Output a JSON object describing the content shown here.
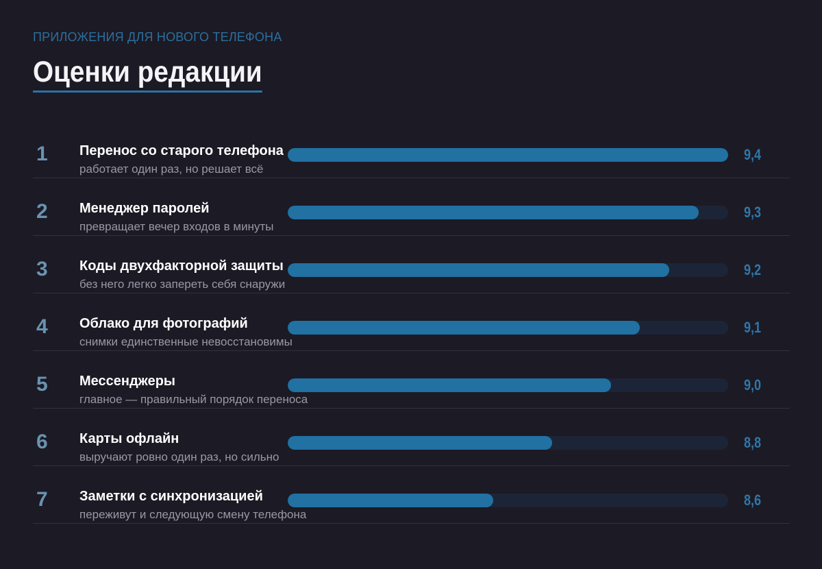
{
  "header": {
    "kicker": "ПРИЛОЖЕНИЯ ДЛЯ НОВОГО ТЕЛЕФОНА",
    "title": "Оценки редакции"
  },
  "colors": {
    "background": "#1c1a24",
    "accent": "#2171a3",
    "track": "#1c2537",
    "rank": "#6993b1",
    "score": "#2e77aa"
  },
  "chart_data": {
    "type": "bar",
    "orientation": "horizontal",
    "title": "Оценки редакции",
    "categories": [
      "Перенос со старого телефона",
      "Менеджер паролей",
      "Коды двухфакторной защиты",
      "Облако для фотографий",
      "Мессенджеры",
      "Карты офлайн",
      "Заметки с синхронизацией"
    ],
    "values": [
      9.4,
      9.3,
      9.2,
      9.1,
      9.0,
      8.8,
      8.6
    ],
    "xlim": [
      7.9,
      9.4
    ],
    "items": [
      {
        "rank": "1",
        "name": "Перенос со старого телефона",
        "desc": "работает один раз, но решает всё",
        "value": 9.4,
        "score": "9,4"
      },
      {
        "rank": "2",
        "name": "Менеджер паролей",
        "desc": "превращает вечер входов в минуты",
        "value": 9.3,
        "score": "9,3"
      },
      {
        "rank": "3",
        "name": "Коды двухфакторной защиты",
        "desc": "без него легко запереть себя снаружи",
        "value": 9.2,
        "score": "9,2"
      },
      {
        "rank": "4",
        "name": "Облако для фотографий",
        "desc": "снимки единственные невосстановимы",
        "value": 9.1,
        "score": "9,1"
      },
      {
        "rank": "5",
        "name": "Мессенджеры",
        "desc": "главное — правильный порядок переноса",
        "value": 9.0,
        "score": "9,0"
      },
      {
        "rank": "6",
        "name": "Карты офлайн",
        "desc": "выручают ровно один раз, но сильно",
        "value": 8.8,
        "score": "8,8"
      },
      {
        "rank": "7",
        "name": "Заметки с синхронизацией",
        "desc": "переживут и следующую смену телефона",
        "value": 8.6,
        "score": "8,6"
      }
    ]
  }
}
